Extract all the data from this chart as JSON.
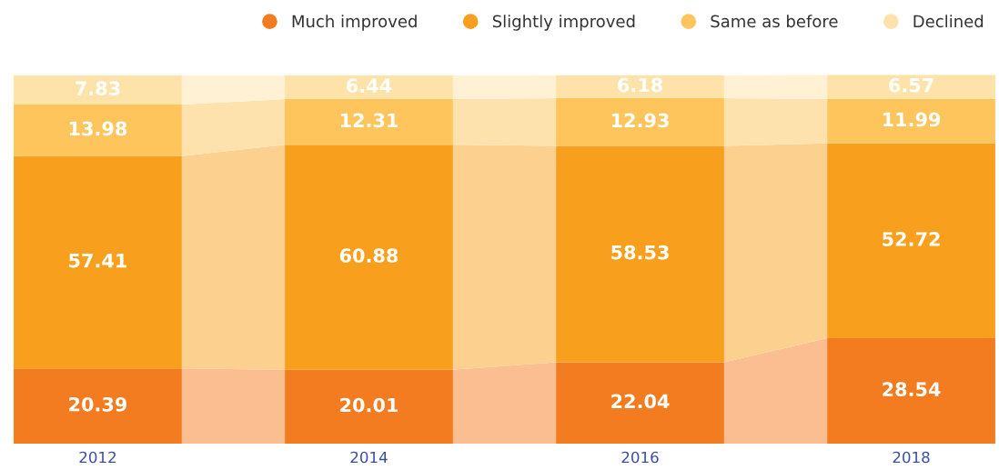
{
  "chart_data": {
    "type": "bar",
    "stacked": true,
    "categories": [
      "2012",
      "2014",
      "2016",
      "2018"
    ],
    "series": [
      {
        "name": "Much improved",
        "color": "#f47c20",
        "values": [
          20.39,
          20.01,
          22.04,
          28.54
        ]
      },
      {
        "name": "Slightly improved",
        "color": "#f8a01e",
        "values": [
          57.41,
          60.88,
          58.53,
          52.72
        ]
      },
      {
        "name": "Same as before",
        "color": "#fdc55c",
        "values": [
          13.98,
          12.31,
          12.93,
          11.99
        ]
      },
      {
        "name": "Declined",
        "color": "#fde3a9",
        "values": [
          7.83,
          6.44,
          6.18,
          6.57
        ]
      }
    ],
    "data_labels": true,
    "legend": "top right",
    "marker": "circle",
    "grid": false
  }
}
